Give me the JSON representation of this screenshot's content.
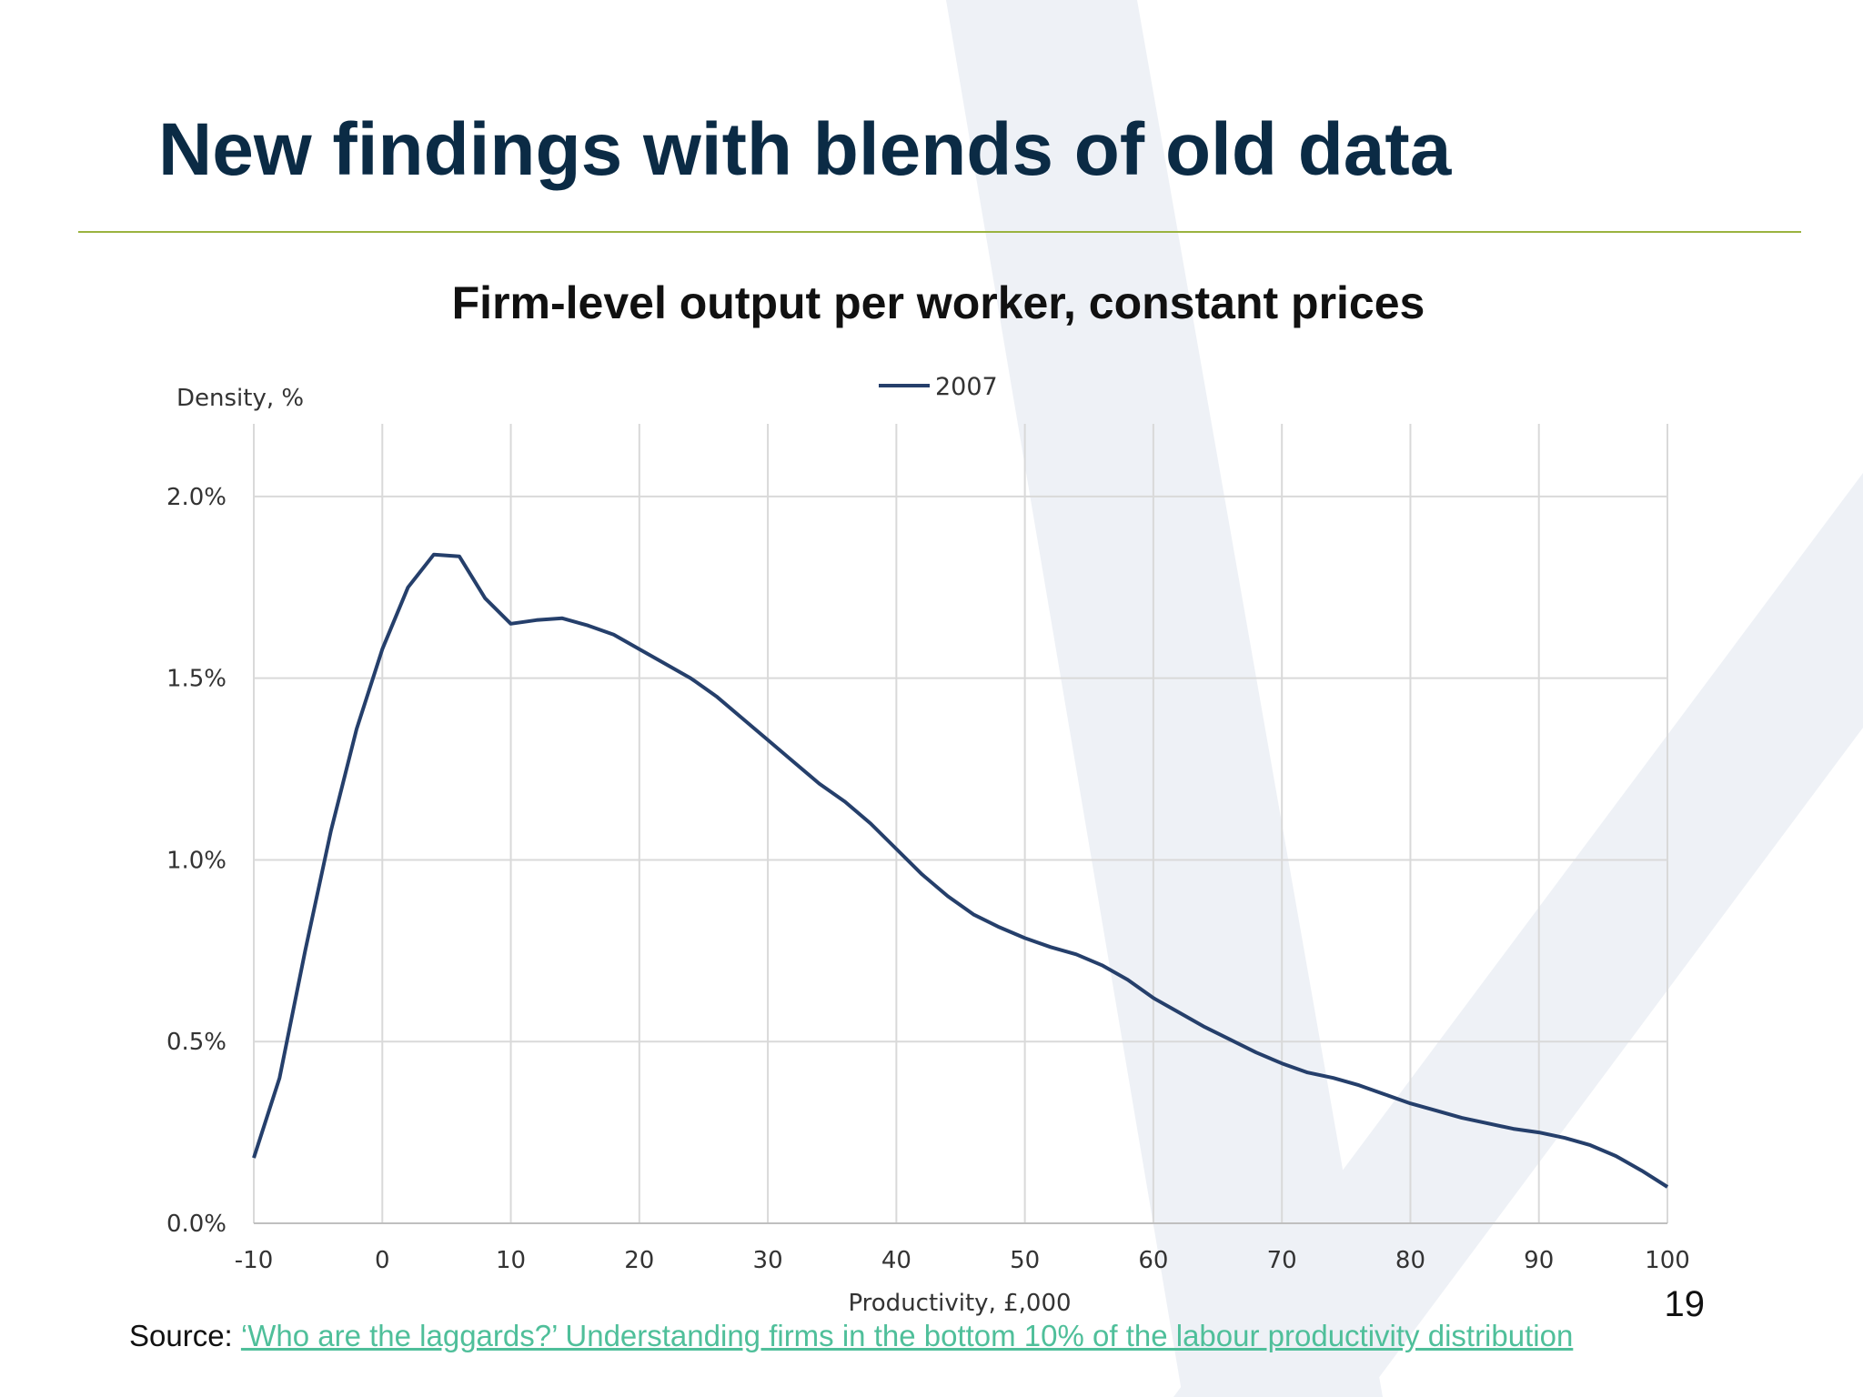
{
  "slide": {
    "title": "New findings with blends of old data",
    "page_number": "19",
    "source_label": "Source:",
    "source_link_text": "‘Who are the laggards?’ Understanding firms in the bottom 10% of the labour productivity distribution"
  },
  "colors": {
    "title": "#0b2b45",
    "rule": "#9ab33f",
    "series": "#253f6b",
    "grid": "#d9d9d9",
    "link": "#4fbf9a",
    "watermark": "#eef1f6"
  },
  "chart_data": {
    "type": "line",
    "title": "Firm-level output per worker, constant prices",
    "xlabel": "Productivity, £,000",
    "ylabel": "Density, %",
    "xlim": [
      -10,
      100
    ],
    "ylim": [
      0,
      2.2
    ],
    "xticks": [
      -10,
      0,
      10,
      20,
      30,
      40,
      50,
      60,
      70,
      80,
      90,
      100
    ],
    "yticks": [
      0,
      0.5,
      1.0,
      1.5,
      2.0
    ],
    "ytick_labels": [
      "0.0%",
      "0.5%",
      "1.0%",
      "1.5%",
      "2.0%"
    ],
    "grid": true,
    "legend_position": "top-center",
    "series": [
      {
        "name": "2007",
        "x": [
          -10,
          -8,
          -6,
          -4,
          -2,
          0,
          2,
          4,
          6,
          8,
          10,
          12,
          14,
          16,
          18,
          20,
          22,
          24,
          26,
          28,
          30,
          32,
          34,
          36,
          38,
          40,
          42,
          44,
          46,
          48,
          50,
          52,
          54,
          56,
          58,
          60,
          62,
          64,
          66,
          68,
          70,
          72,
          74,
          76,
          78,
          80,
          82,
          84,
          86,
          88,
          90,
          92,
          94,
          96,
          98,
          100
        ],
        "y": [
          0.18,
          0.4,
          0.75,
          1.08,
          1.36,
          1.58,
          1.75,
          1.84,
          1.835,
          1.72,
          1.65,
          1.66,
          1.665,
          1.645,
          1.62,
          1.58,
          1.54,
          1.5,
          1.45,
          1.39,
          1.33,
          1.27,
          1.21,
          1.16,
          1.1,
          1.03,
          0.96,
          0.9,
          0.85,
          0.815,
          0.785,
          0.76,
          0.74,
          0.71,
          0.67,
          0.62,
          0.58,
          0.54,
          0.505,
          0.47,
          0.44,
          0.415,
          0.4,
          0.38,
          0.355,
          0.33,
          0.31,
          0.29,
          0.275,
          0.26,
          0.25,
          0.235,
          0.215,
          0.185,
          0.145,
          0.1
        ]
      }
    ]
  }
}
